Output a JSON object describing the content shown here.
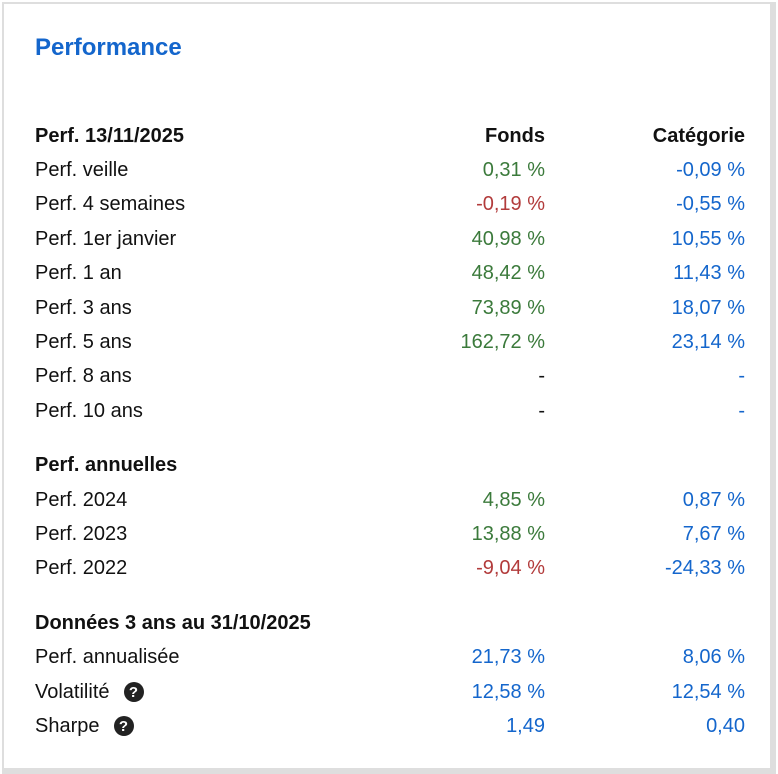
{
  "title": "Performance",
  "colors": {
    "title": "#1466cc",
    "positive": "#3b7a3b",
    "negative": "#b23b3b",
    "category": "#1466cc"
  },
  "sections": [
    {
      "header": "Perf. 13/11/2025",
      "col1": "Fonds",
      "col2": "Catégorie",
      "rows": [
        {
          "label": "Perf. veille",
          "fonds": "0,31 %",
          "cat": "-0,09 %"
        },
        {
          "label": "Perf. 4 semaines",
          "fonds": "-0,19 %",
          "cat": "-0,55 %"
        },
        {
          "label": "Perf. 1er janvier",
          "fonds": "40,98 %",
          "cat": "10,55 %"
        },
        {
          "label": "Perf. 1 an",
          "fonds": "48,42 %",
          "cat": "11,43 %"
        },
        {
          "label": "Perf. 3 ans",
          "fonds": "73,89 %",
          "cat": "18,07 %"
        },
        {
          "label": "Perf. 5 ans",
          "fonds": "162,72 %",
          "cat": "23,14 %"
        },
        {
          "label": "Perf. 8 ans",
          "fonds": "-",
          "cat": "-"
        },
        {
          "label": "Perf. 10 ans",
          "fonds": "-",
          "cat": "-"
        }
      ]
    },
    {
      "header": "Perf. annuelles",
      "rows": [
        {
          "label": "Perf. 2024",
          "fonds": "4,85 %",
          "cat": "0,87 %"
        },
        {
          "label": "Perf. 2023",
          "fonds": "13,88 %",
          "cat": "7,67 %"
        },
        {
          "label": "Perf. 2022",
          "fonds": "-9,04 %",
          "cat": "-24,33 %"
        }
      ]
    },
    {
      "header": "Données 3 ans au 31/10/2025",
      "rows": [
        {
          "label": "Perf. annualisée",
          "fonds": "21,73 %",
          "cat": "8,06 %"
        },
        {
          "label": "Volatilité",
          "fonds": "12,58 %",
          "cat": "12,54 %",
          "help": "?"
        },
        {
          "label": "Sharpe",
          "fonds": "1,49",
          "cat": "0,40",
          "help": "?"
        }
      ]
    }
  ]
}
